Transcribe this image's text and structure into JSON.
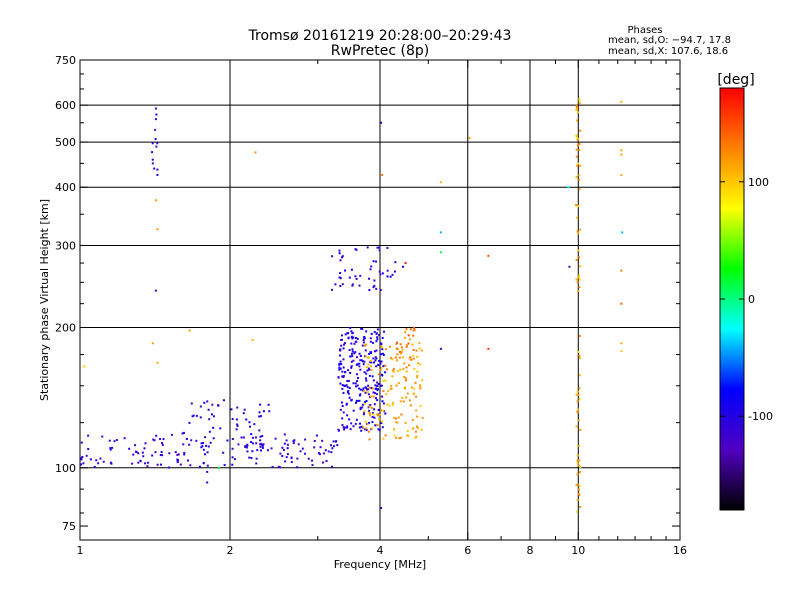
{
  "chart_data": {
    "type": "scatter",
    "title": "Tromsø 20161219 20:28:00–20:29:43",
    "subtitle": "RwPretec (8p)",
    "xlabel": "Frequency [MHz]",
    "ylabel": "Stationary phase Virtual Height [km]",
    "x_scale": "log",
    "y_scale": "log",
    "xlim": [
      1,
      16
    ],
    "ylim": [
      70,
      750
    ],
    "x_ticks": [
      1,
      2,
      4,
      6,
      8,
      10,
      16
    ],
    "y_ticks": [
      75,
      100,
      200,
      300,
      400,
      500,
      600,
      750
    ],
    "x_grid": [
      2,
      4,
      6,
      8,
      10
    ],
    "y_grid": [
      100,
      200,
      300,
      400,
      500,
      600
    ],
    "grid": true,
    "info": {
      "heading": "Phases",
      "line_o": "mean, sd,O: −94.7, 17.8",
      "line_x": "mean, sd,X: 107.6, 18.6"
    },
    "colorbar": {
      "label": "[deg]",
      "range": [
        -180,
        180
      ],
      "ticks": [
        100,
        0,
        -100
      ],
      "colors": [
        "#ff0000",
        "#ff8000",
        "#ffff00",
        "#00ff00",
        "#00ffff",
        "#0000ff",
        "#5000c0",
        "#000000"
      ]
    },
    "clusters": [
      {
        "name": "o-trace-low",
        "x_range": [
          1.0,
          3.3
        ],
        "y_range": [
          100,
          118
        ],
        "phase": -110,
        "count": 170
      },
      {
        "name": "o-trace-mid",
        "x_range": [
          1.6,
          2.4
        ],
        "y_range": [
          110,
          140
        ],
        "phase": -105,
        "count": 60
      },
      {
        "name": "o-trace-1",
        "x_range": [
          3.3,
          4.1
        ],
        "y_range": [
          120,
          200
        ],
        "phase": -100,
        "count": 260
      },
      {
        "name": "o-trace-2",
        "x_range": [
          3.2,
          4.3
        ],
        "y_range": [
          240,
          300
        ],
        "phase": -105,
        "count": 50
      },
      {
        "name": "x-trace",
        "x_range": [
          3.7,
          4.9
        ],
        "y_range": [
          115,
          185
        ],
        "phase": 115,
        "count": 150
      },
      {
        "name": "x-trace-top",
        "x_range": [
          4.3,
          4.8
        ],
        "y_range": [
          170,
          200
        ],
        "phase": 130,
        "count": 25
      },
      {
        "name": "spread-f-10mhz",
        "x_range": [
          9.9,
          10.1
        ],
        "y_range": [
          80,
          640
        ],
        "phase": 110,
        "count": 80
      },
      {
        "name": "echo-1.4mhz",
        "x_range": [
          1.39,
          1.43
        ],
        "y_range": [
          420,
          590
        ],
        "phase": -110,
        "count": 10
      }
    ],
    "points": [
      {
        "x": 1.42,
        "y": 590,
        "phase": -110
      },
      {
        "x": 1.42,
        "y": 560,
        "phase": -110
      },
      {
        "x": 1.4,
        "y": 450,
        "phase": -110
      },
      {
        "x": 1.43,
        "y": 425,
        "phase": -110
      },
      {
        "x": 1.42,
        "y": 375,
        "phase": 120
      },
      {
        "x": 1.43,
        "y": 325,
        "phase": 120
      },
      {
        "x": 1.42,
        "y": 240,
        "phase": -110
      },
      {
        "x": 1.4,
        "y": 185,
        "phase": 120
      },
      {
        "x": 1.43,
        "y": 168,
        "phase": 110
      },
      {
        "x": 1.02,
        "y": 165,
        "phase": 100
      },
      {
        "x": 1.66,
        "y": 197,
        "phase": 120
      },
      {
        "x": 2.25,
        "y": 475,
        "phase": 120
      },
      {
        "x": 2.22,
        "y": 188,
        "phase": 110
      },
      {
        "x": 4.02,
        "y": 550,
        "phase": -110
      },
      {
        "x": 4.04,
        "y": 425,
        "phase": 130
      },
      {
        "x": 4.02,
        "y": 82,
        "phase": -110
      },
      {
        "x": 5.3,
        "y": 410,
        "phase": 110
      },
      {
        "x": 5.3,
        "y": 320,
        "phase": -40
      },
      {
        "x": 5.3,
        "y": 290,
        "phase": 10
      },
      {
        "x": 5.3,
        "y": 180,
        "phase": -110
      },
      {
        "x": 6.05,
        "y": 510,
        "phase": 110
      },
      {
        "x": 6.6,
        "y": 285,
        "phase": 150
      },
      {
        "x": 6.6,
        "y": 180,
        "phase": 160
      },
      {
        "x": 9.6,
        "y": 270,
        "phase": -120
      },
      {
        "x": 9.55,
        "y": 400,
        "phase": -20
      },
      {
        "x": 12.2,
        "y": 610,
        "phase": 110
      },
      {
        "x": 12.2,
        "y": 480,
        "phase": 110
      },
      {
        "x": 12.2,
        "y": 470,
        "phase": 120
      },
      {
        "x": 12.2,
        "y": 425,
        "phase": 110
      },
      {
        "x": 12.25,
        "y": 320,
        "phase": -40
      },
      {
        "x": 12.2,
        "y": 265,
        "phase": 130
      },
      {
        "x": 12.2,
        "y": 225,
        "phase": 140
      },
      {
        "x": 12.2,
        "y": 185,
        "phase": 110
      },
      {
        "x": 12.2,
        "y": 178,
        "phase": 100
      },
      {
        "x": 4.5,
        "y": 275,
        "phase": 170
      },
      {
        "x": 4.45,
        "y": 270,
        "phase": -80
      },
      {
        "x": 1.8,
        "y": 93,
        "phase": -110
      },
      {
        "x": 1.8,
        "y": 98,
        "phase": -110
      },
      {
        "x": 1.9,
        "y": 100,
        "phase": 20
      }
    ]
  }
}
